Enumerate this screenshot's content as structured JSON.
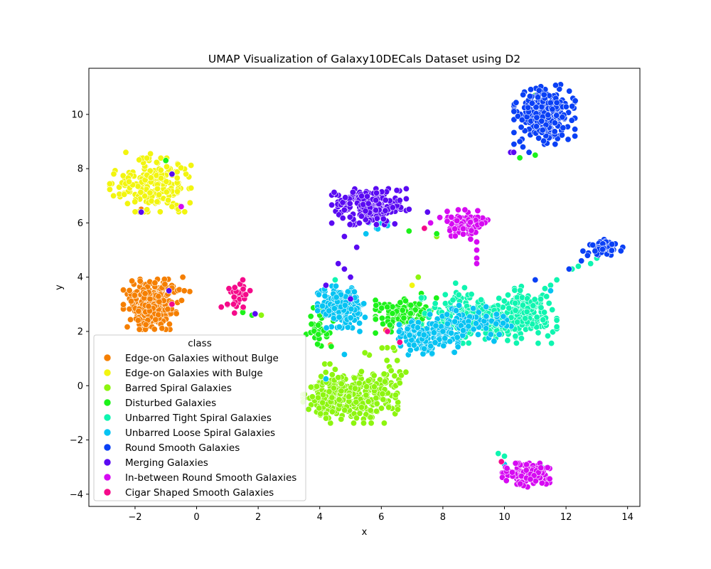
{
  "chart_data": {
    "type": "scatter",
    "title": "UMAP Visualization of Galaxy10DECals Dataset using D2",
    "xlabel": "x",
    "ylabel": "y",
    "xlim": [
      -3.5,
      14.4
    ],
    "ylim": [
      -4.45,
      11.7
    ],
    "xticks": [
      -2,
      0,
      2,
      4,
      6,
      8,
      10,
      12,
      14
    ],
    "yticks": [
      -4,
      -2,
      0,
      2,
      4,
      6,
      8,
      10
    ],
    "xtick_labels": [
      "−2",
      "0",
      "2",
      "4",
      "6",
      "8",
      "10",
      "12",
      "14"
    ],
    "ytick_labels": [
      "−4",
      "−2",
      "0",
      "2",
      "4",
      "6",
      "8",
      "10"
    ],
    "grid": false,
    "legend": {
      "title": "class",
      "position": "lower-left"
    },
    "series": [
      {
        "name": "Edge-on Galaxies without Bulge",
        "color": "#f57f00",
        "clusters": [
          {
            "cx": -1.5,
            "cy": 3.0,
            "sx": 0.4,
            "sy": 0.42,
            "n": 260
          },
          {
            "cx": -0.8,
            "cy": 3.5,
            "sx": 0.35,
            "sy": 0.3,
            "n": 10
          }
        ],
        "points": [
          [
            -0.45,
            4.0
          ],
          [
            -0.4,
            3.5
          ],
          [
            -1.8,
            6.5
          ],
          [
            -1.7,
            6.4
          ],
          [
            -0.8,
            3.6
          ],
          [
            4.35,
            1.5
          ],
          [
            6.1,
            6.05
          ],
          [
            6.15,
            2.05
          ]
        ]
      },
      {
        "name": "Edge-on Galaxies with Bulge",
        "color": "#f2f50f",
        "clusters": [
          {
            "cx": -1.5,
            "cy": 7.4,
            "sx": 0.6,
            "sy": 0.45,
            "n": 200
          }
        ],
        "points": [
          [
            -2.3,
            8.6
          ],
          [
            -1.5,
            8.55
          ],
          [
            -2.7,
            7.0
          ],
          [
            -0.8,
            6.6
          ],
          [
            -0.6,
            6.5
          ],
          [
            7.0,
            3.7
          ],
          [
            6.5,
            2.8
          ]
        ]
      },
      {
        "name": "Barred Spiral Galaxies",
        "color": "#8df50f",
        "clusters": [
          {
            "cx": 5.0,
            "cy": -0.5,
            "sx": 0.7,
            "sy": 0.4,
            "n": 230
          },
          {
            "cx": 4.3,
            "cy": -0.3,
            "sx": 0.3,
            "sy": 0.5,
            "n": 50
          },
          {
            "cx": 6.0,
            "cy": 0.3,
            "sx": 0.4,
            "sy": 0.5,
            "n": 50
          }
        ],
        "points": [
          [
            4.5,
            0.6
          ],
          [
            4.6,
            0.3
          ],
          [
            6.6,
            0.1
          ],
          [
            6.8,
            0.5
          ],
          [
            7.2,
            4.0
          ],
          [
            7.8,
            5.5
          ],
          [
            2.1,
            2.6
          ],
          [
            1.5,
            2.8
          ]
        ]
      },
      {
        "name": "Disturbed Galaxies",
        "color": "#1cf21a",
        "clusters": [
          {
            "cx": 6.8,
            "cy": 2.6,
            "sx": 0.45,
            "sy": 0.3,
            "n": 120
          },
          {
            "cx": 4.0,
            "cy": 2.1,
            "sx": 0.2,
            "sy": 0.35,
            "n": 30
          }
        ],
        "points": [
          [
            7.3,
            3.4
          ],
          [
            6.9,
            5.7
          ],
          [
            7.8,
            5.6
          ],
          [
            10.5,
            8.4
          ],
          [
            11.0,
            8.5
          ],
          [
            1.5,
            2.7
          ],
          [
            1.8,
            2.6
          ],
          [
            -1.0,
            8.3
          ],
          [
            11.0,
            10.7
          ],
          [
            4.0,
            2.6
          ]
        ]
      },
      {
        "name": "Unbarred Tight Spiral Galaxies",
        "color": "#0ff5b0",
        "clusters": [
          {
            "cx": 9.5,
            "cy": 2.4,
            "sx": 1.0,
            "sy": 0.38,
            "n": 330
          },
          {
            "cx": 10.7,
            "cy": 3.0,
            "sx": 0.4,
            "sy": 0.3,
            "n": 60
          },
          {
            "cx": 8.6,
            "cy": 2.9,
            "sx": 0.3,
            "sy": 0.4,
            "n": 40
          }
        ],
        "points": [
          [
            12.8,
            4.5
          ],
          [
            13.0,
            4.7
          ],
          [
            10.0,
            -2.6
          ],
          [
            9.8,
            -2.5
          ],
          [
            11.2,
            -3.0
          ],
          [
            11.7,
            3.9
          ],
          [
            12.2,
            4.3
          ],
          [
            12.4,
            4.4
          ],
          [
            11.5,
            3.7
          ],
          [
            4.5,
            3.9
          ]
        ]
      },
      {
        "name": "Unbarred Loose Spiral Galaxies",
        "color": "#06c3f2",
        "clusters": [
          {
            "cx": 4.7,
            "cy": 2.9,
            "sx": 0.35,
            "sy": 0.35,
            "n": 150
          },
          {
            "cx": 7.5,
            "cy": 1.8,
            "sx": 0.45,
            "sy": 0.3,
            "n": 140
          },
          {
            "cx": 8.9,
            "cy": 2.3,
            "sx": 0.6,
            "sy": 0.3,
            "n": 80
          },
          {
            "cx": 5.8,
            "cy": 6.0,
            "sx": 0.3,
            "sy": 0.2,
            "n": 8
          }
        ],
        "points": [
          [
            4.8,
            1.15
          ],
          [
            5.3,
            2.0
          ],
          [
            6.2,
            5.9
          ],
          [
            5.5,
            5.6
          ],
          [
            10.3,
            -3.2
          ],
          [
            10.0,
            -2.9
          ],
          [
            11.5,
            3.5
          ],
          [
            4.2,
            0.25
          ],
          [
            8.0,
            2.0
          ]
        ]
      },
      {
        "name": "Round Smooth Galaxies",
        "color": "#0a40f5",
        "clusters": [
          {
            "cx": 11.3,
            "cy": 10.0,
            "sx": 0.45,
            "sy": 0.5,
            "n": 260
          },
          {
            "cx": 13.2,
            "cy": 5.1,
            "sx": 0.3,
            "sy": 0.13,
            "n": 50
          }
        ],
        "points": [
          [
            12.7,
            4.8
          ],
          [
            12.5,
            4.6
          ],
          [
            12.1,
            4.3
          ],
          [
            10.6,
            8.8
          ],
          [
            10.8,
            8.6
          ],
          [
            12.3,
            10.5
          ],
          [
            12.2,
            10.3
          ],
          [
            11.0,
            3.9
          ],
          [
            10.5,
            9.0
          ]
        ]
      },
      {
        "name": "Merging Galaxies",
        "color": "#5a0af2",
        "clusters": [
          {
            "cx": 5.6,
            "cy": 6.6,
            "sx": 0.55,
            "sy": 0.3,
            "n": 200
          }
        ],
        "points": [
          [
            4.6,
            4.5
          ],
          [
            4.8,
            4.3
          ],
          [
            5.0,
            4.0
          ],
          [
            5.0,
            3.2
          ],
          [
            4.2,
            3.7
          ],
          [
            7.5,
            6.4
          ],
          [
            5.2,
            5.1
          ],
          [
            4.8,
            5.5
          ],
          [
            10.2,
            8.6
          ],
          [
            10.3,
            8.6
          ],
          [
            -0.8,
            7.8
          ],
          [
            -0.9,
            3.5
          ],
          [
            1.9,
            2.65
          ],
          [
            6.9,
            6.5
          ],
          [
            -1.8,
            6.4
          ]
        ]
      },
      {
        "name": "In-between Round Smooth Galaxies",
        "color": "#d60af2",
        "clusters": [
          {
            "cx": 10.7,
            "cy": -3.3,
            "sx": 0.35,
            "sy": 0.2,
            "n": 140
          },
          {
            "cx": 8.8,
            "cy": 6.0,
            "sx": 0.3,
            "sy": 0.22,
            "n": 80
          }
        ],
        "points": [
          [
            9.1,
            5.0
          ],
          [
            9.1,
            4.7
          ],
          [
            9.1,
            4.5
          ],
          [
            8.9,
            5.4
          ],
          [
            7.9,
            6.2
          ],
          [
            7.6,
            6.0
          ],
          [
            -0.5,
            6.6
          ],
          [
            9.1,
            5.3
          ]
        ]
      },
      {
        "name": "Cigar Shaped Smooth Galaxies",
        "color": "#f50a8a",
        "clusters": [
          {
            "cx": 1.4,
            "cy": 3.3,
            "sx": 0.2,
            "sy": 0.3,
            "n": 25
          }
        ],
        "points": [
          [
            0.8,
            2.9
          ],
          [
            1.0,
            3.0
          ],
          [
            1.2,
            3.0
          ],
          [
            1.5,
            3.9
          ],
          [
            7.4,
            5.8
          ],
          [
            6.2,
            2.0
          ],
          [
            6.6,
            1.6
          ],
          [
            9.9,
            -2.8
          ],
          [
            -0.8,
            3.0
          ]
        ]
      }
    ]
  }
}
